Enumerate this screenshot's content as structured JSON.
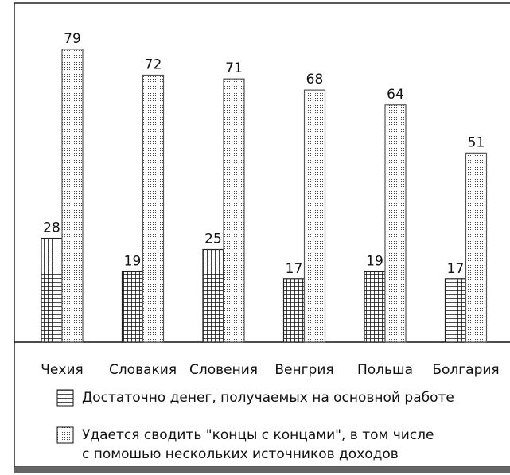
{
  "chart_data": {
    "type": "bar",
    "categories": [
      "Чехия",
      "Словакия",
      "Словения",
      "Венгрия",
      "Польша",
      "Болгария"
    ],
    "series": [
      {
        "name": "Достаточно денег, получаемых на основной работе",
        "color": "#222222",
        "pattern": "grid",
        "values": [
          28,
          19,
          25,
          17,
          19,
          17
        ]
      },
      {
        "name": "Удается сводить \"концы с концами\", в том числе\nс помошью нескольких источников доходов",
        "color": "#555555",
        "pattern": "dots",
        "values": [
          79,
          72,
          71,
          68,
          64,
          51
        ]
      }
    ]
  }
}
